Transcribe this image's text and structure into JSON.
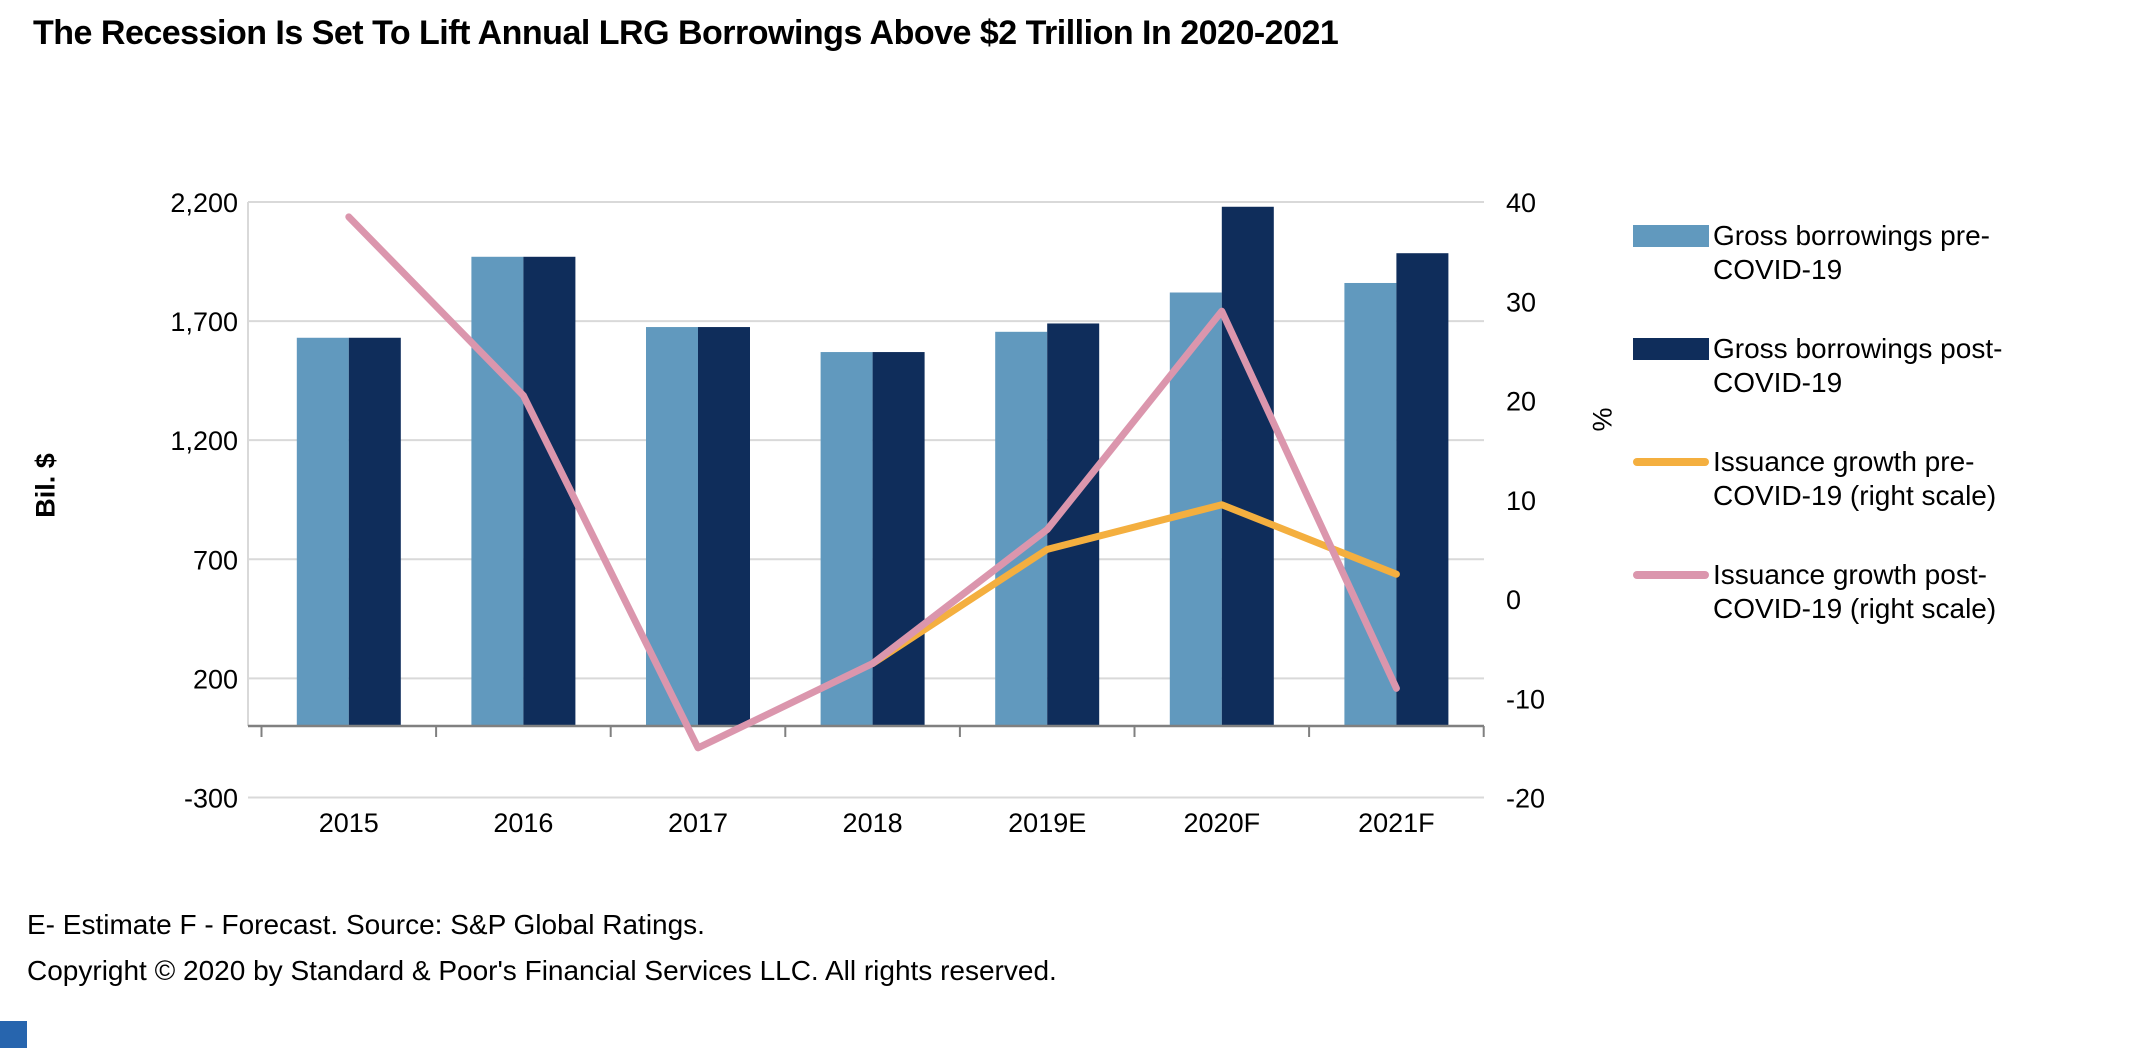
{
  "title": "The Recession Is Set To Lift Annual LRG Borrowings Above $2 Trillion In 2020-2021",
  "chart_data": {
    "type": "combo_bar_line",
    "categories": [
      "2015",
      "2016",
      "2017",
      "2018",
      "2019E",
      "2020F",
      "2021F"
    ],
    "series": [
      {
        "name": "Gross borrowings pre-COVID-19",
        "type": "bar",
        "axis": "left",
        "color": "#6199BE",
        "values": [
          1630,
          1970,
          1675,
          1570,
          1655,
          1820,
          1860
        ]
      },
      {
        "name": "Gross borrowings post-COVID-19",
        "type": "bar",
        "axis": "left",
        "color": "#0F2D5B",
        "values": [
          1630,
          1970,
          1675,
          1570,
          1690,
          2180,
          1985
        ]
      },
      {
        "name": "Issuance growth pre-COVID-19 (right scale)",
        "type": "line",
        "axis": "right",
        "color": "#F4AF3F",
        "values": [
          null,
          null,
          null,
          -6.5,
          5,
          9.5,
          2.5
        ]
      },
      {
        "name": "Issuance growth post-COVID-19 (right scale)",
        "type": "line",
        "axis": "right",
        "color": "#DB96AD",
        "values": [
          38.5,
          20.5,
          -15,
          -6.5,
          7,
          29,
          -9
        ]
      }
    ],
    "left_axis": {
      "title": "Bil. $",
      "range": [
        -300,
        2200
      ],
      "ticks": [
        {
          "v": 2200,
          "label": "2,200"
        },
        {
          "v": 1700,
          "label": "1,700"
        },
        {
          "v": 1200,
          "label": "1,200"
        },
        {
          "v": 700,
          "label": "700"
        },
        {
          "v": 200,
          "label": "200"
        },
        {
          "v": -300,
          "label": "-300"
        }
      ]
    },
    "right_axis": {
      "title": "%",
      "range": [
        -20,
        40
      ],
      "ticks": [
        {
          "v": 40,
          "label": "40"
        },
        {
          "v": 30,
          "label": "30"
        },
        {
          "v": 20,
          "label": "20"
        },
        {
          "v": 10,
          "label": "10"
        },
        {
          "v": 0,
          "label": "0"
        },
        {
          "v": -10,
          "label": "-10"
        },
        {
          "v": -20,
          "label": "-20"
        }
      ]
    },
    "grid": "horizontal gridlines at left-axis ticks",
    "legend_position": "right"
  },
  "legend": {
    "items": [
      {
        "type": "bar",
        "color": "#6199BE",
        "lines": [
          "Gross borrowings pre-",
          "COVID-19"
        ]
      },
      {
        "type": "bar",
        "color": "#0F2D5B",
        "lines": [
          "Gross borrowings post-",
          "COVID-19"
        ]
      },
      {
        "type": "line",
        "color": "#F4AF3F",
        "lines": [
          "Issuance growth pre-",
          "COVID-19 (right scale)"
        ]
      },
      {
        "type": "line",
        "color": "#DB96AD",
        "lines": [
          "Issuance growth post-",
          "COVID-19 (right scale)"
        ]
      }
    ]
  },
  "footer": {
    "line1": "E- Estimate F - Forecast. Source: S&P Global Ratings.",
    "line2": "Copyright © 2020 by Standard & Poor's Financial Services LLC. All rights reserved."
  },
  "brand_color": "#2765AE",
  "style_colors": {
    "gridline": "#D9D9D9",
    "axis_line": "#808080"
  }
}
